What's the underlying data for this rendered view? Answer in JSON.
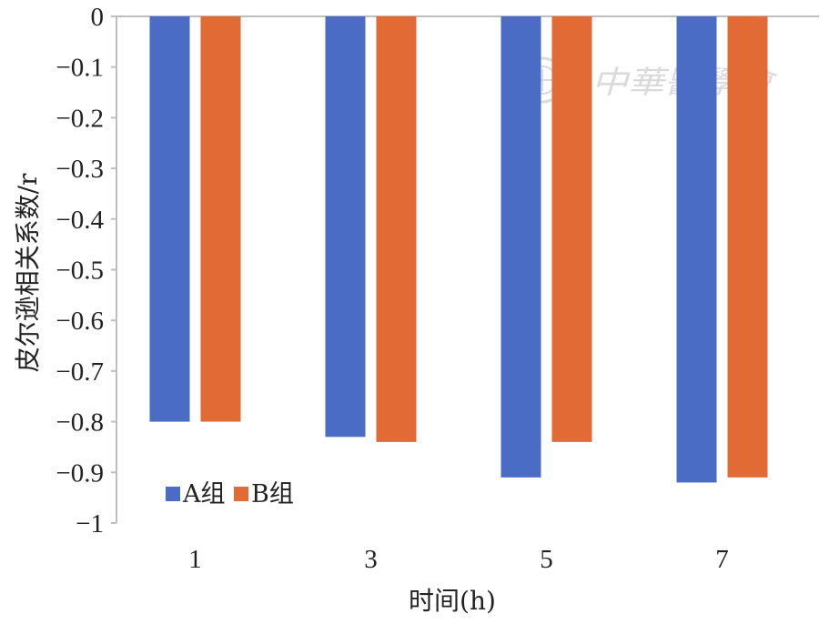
{
  "chart_data": {
    "type": "bar",
    "categories": [
      "1",
      "3",
      "5",
      "7"
    ],
    "series": [
      {
        "name": "A组",
        "values": [
          -0.8,
          -0.83,
          -0.91,
          -0.92
        ]
      },
      {
        "name": "B组",
        "values": [
          -0.8,
          -0.84,
          -0.84,
          -0.91
        ]
      }
    ],
    "colors": [
      "#4a6cc4",
      "#e26a34"
    ],
    "xlabel": "时间(h)",
    "ylabel": "皮尔逊相关系数/r",
    "ylim": [
      -1,
      0
    ],
    "yticks": [
      "0",
      "−0.1",
      "−0.2",
      "−0.3",
      "−0.4",
      "−0.5",
      "−0.6",
      "−0.7",
      "−0.8",
      "−0.9",
      "−1"
    ],
    "legend_position": "bottom-left",
    "grid": false
  },
  "watermark": {
    "text": "中華醫學會",
    "icon": "society-seal-icon"
  }
}
